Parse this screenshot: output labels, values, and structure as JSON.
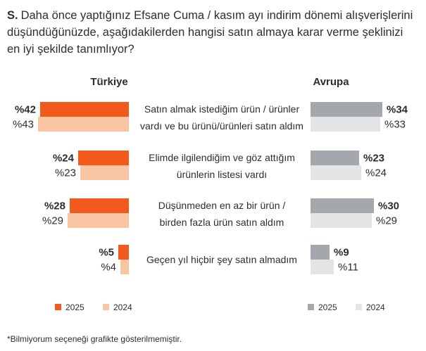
{
  "question": {
    "prefix": "S.",
    "text": "Daha önce yaptığınız Efsane Cuma / kasım ayı indirim dönemi alışverişlerini düşündüğünüzde, aşağıdakilerden hangisi satın almaya karar verme şeklinizi en iyi şekilde tanımlıyor?"
  },
  "footnote": "*Bilmiyorum seçeneği grafikte gösterilmemiştir.",
  "chart_data": {
    "type": "bar",
    "orientation": "horizontal",
    "panels": [
      {
        "name": "Türkiye",
        "direction": "right-to-left",
        "series": [
          {
            "name": "2025",
            "color": "#f25a1d",
            "values": [
              42,
              24,
              28,
              5
            ],
            "labels": [
              "%42",
              "%24",
              "%28",
              "%5"
            ]
          },
          {
            "name": "2024",
            "color": "#f9c5a2",
            "values": [
              43,
              23,
              29,
              4
            ],
            "labels": [
              "%43",
              "%23",
              "%29",
              "%4"
            ]
          }
        ]
      },
      {
        "name": "Avrupa",
        "direction": "left-to-right",
        "series": [
          {
            "name": "2025",
            "color": "#a4a7ab",
            "values": [
              34,
              23,
              30,
              9
            ],
            "labels": [
              "%34",
              "%23",
              "%30",
              "%9"
            ]
          },
          {
            "name": "2024",
            "color": "#e2e4e6",
            "values": [
              33,
              24,
              29,
              11
            ],
            "labels": [
              "%33",
              "%24",
              "%29",
              "%11"
            ]
          }
        ]
      }
    ],
    "categories": [
      [
        "Satın almak istediğim ürün / ürünler",
        "vardı ve bu ürünü/ürünleri satın aldım"
      ],
      [
        "Elimde ilgilendiğim ve göz attığım",
        "ürünlerin listesi vardı"
      ],
      [
        "Düşünmeden en az bir ürün /",
        "birden fazla ürün satın aldım"
      ],
      [
        "Geçen yıl hiçbir şey satın almadım"
      ]
    ]
  }
}
